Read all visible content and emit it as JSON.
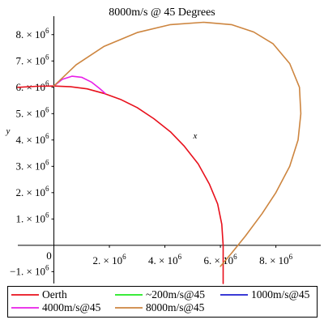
{
  "chart_data": {
    "type": "line",
    "title": "8000m/s @ 45 Degrees",
    "xlabel": "x",
    "ylabel": "y",
    "xlim": [
      -1300000,
      9500000
    ],
    "ylim": [
      -1450000,
      8700000
    ],
    "x_ticks": [
      {
        "value": 2000000,
        "mantissa": "2.",
        "exp": "6"
      },
      {
        "value": 4000000,
        "mantissa": "4.",
        "exp": "6"
      },
      {
        "value": 6000000,
        "mantissa": "6.",
        "exp": "6"
      },
      {
        "value": 8000000,
        "mantissa": "8.",
        "exp": "6"
      }
    ],
    "y_ticks": [
      {
        "value": -1000000,
        "mantissa": "−1.",
        "exp": "6"
      },
      {
        "value": 1000000,
        "mantissa": "1.",
        "exp": "6"
      },
      {
        "value": 2000000,
        "mantissa": "2.",
        "exp": "6"
      },
      {
        "value": 3000000,
        "mantissa": "3.",
        "exp": "6"
      },
      {
        "value": 4000000,
        "mantissa": "4.",
        "exp": "6"
      },
      {
        "value": 5000000,
        "mantissa": "5.",
        "exp": "6"
      },
      {
        "value": 6000000,
        "mantissa": "6.",
        "exp": "6"
      },
      {
        "value": 7000000,
        "mantissa": "7.",
        "exp": "6"
      },
      {
        "value": 8000000,
        "mantissa": "8.",
        "exp": "6"
      }
    ],
    "origin_label": "0",
    "tick_multiplier": "× 10",
    "series": [
      {
        "name": "Oerth",
        "color": "#e8101c",
        "points": [
          [
            -1300000,
            6000000
          ],
          [
            -600000,
            6040000
          ],
          [
            0,
            6050000
          ],
          [
            600000,
            6020000
          ],
          [
            1200000,
            5940000
          ],
          [
            1800000,
            5770000
          ],
          [
            2400000,
            5540000
          ],
          [
            3000000,
            5230000
          ],
          [
            3600000,
            4810000
          ],
          [
            4200000,
            4310000
          ],
          [
            4700000,
            3760000
          ],
          [
            5200000,
            3090000
          ],
          [
            5600000,
            2330000
          ],
          [
            5900000,
            1570000
          ],
          [
            6050000,
            800000
          ],
          [
            6100000,
            0
          ],
          [
            6100000,
            -1450000
          ]
        ]
      },
      {
        "name": "~200m/s@45",
        "color": "#1fe81f",
        "points": []
      },
      {
        "name": "1000m/s@45",
        "color": "#1f1fd0",
        "points": []
      },
      {
        "name": "4000m/s@45",
        "color": "#e81fe8",
        "points": [
          [
            0,
            6050000
          ],
          [
            300000,
            6300000
          ],
          [
            650000,
            6420000
          ],
          [
            1000000,
            6380000
          ],
          [
            1350000,
            6200000
          ],
          [
            1650000,
            5950000
          ],
          [
            1850000,
            5770000
          ]
        ]
      },
      {
        "name": "8000m/s@45",
        "color": "#cd853f",
        "points": [
          [
            0,
            6050000
          ],
          [
            800000,
            6850000
          ],
          [
            1800000,
            7550000
          ],
          [
            3000000,
            8080000
          ],
          [
            4200000,
            8380000
          ],
          [
            5400000,
            8470000
          ],
          [
            6400000,
            8380000
          ],
          [
            7200000,
            8100000
          ],
          [
            7900000,
            7650000
          ],
          [
            8500000,
            6900000
          ],
          [
            8850000,
            6000000
          ],
          [
            8900000,
            5000000
          ],
          [
            8800000,
            4000000
          ],
          [
            8500000,
            3000000
          ],
          [
            8000000,
            2000000
          ],
          [
            7500000,
            1200000
          ],
          [
            6900000,
            350000
          ],
          [
            6400000,
            -300000
          ],
          [
            6000000,
            -800000
          ]
        ]
      }
    ]
  },
  "legend": [
    {
      "label": "Oerth",
      "color": "#e8101c"
    },
    {
      "label": "~200m/s@45",
      "color": "#1fe81f"
    },
    {
      "label": "1000m/s@45",
      "color": "#1f1fd0"
    },
    {
      "label": "4000m/s@45",
      "color": "#e81fe8"
    },
    {
      "label": "8000m/s@45",
      "color": "#cd853f"
    }
  ]
}
